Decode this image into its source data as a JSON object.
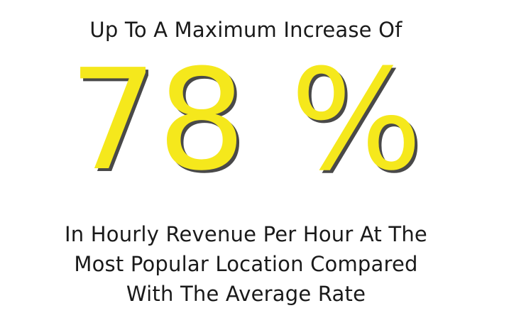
{
  "headline": "Up To A Maximum Increase Of",
  "stat": {
    "value": "78 %",
    "color": "#f5e81c",
    "shadow_color": "#2a2a2a"
  },
  "caption": {
    "lines": [
      "In Hourly Revenue Per Hour At The",
      "Most Popular Location Compared",
      "With The Average Rate"
    ]
  }
}
